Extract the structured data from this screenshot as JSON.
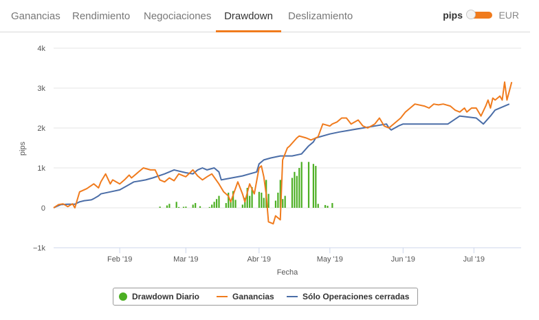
{
  "tabs": [
    {
      "label": "Ganancias",
      "active": false
    },
    {
      "label": "Rendimiento",
      "active": false
    },
    {
      "label": "Negociaciones",
      "active": false
    },
    {
      "label": "Drawdown",
      "active": true
    },
    {
      "label": "Deslizamiento",
      "active": false
    }
  ],
  "unit_toggle": {
    "left_label": "pips",
    "right_label": "EUR",
    "selected": "pips"
  },
  "colors": {
    "accent": "#f07b1d",
    "ganancias": "#f07b1d",
    "cerradas": "#4a6da7",
    "drawdown": "#4caf23"
  },
  "chart_data": {
    "type": "line",
    "xlabel": "Fecha",
    "ylabel": "pips",
    "ylim": [
      -1000,
      4000
    ],
    "y_ticks": [
      -1000,
      0,
      1000,
      2000,
      3000,
      4000
    ],
    "y_tick_labels": [
      "−1k",
      "0",
      "1k",
      "2k",
      "3k",
      "4k"
    ],
    "xlim": [
      "2019-01-04",
      "2019-07-21"
    ],
    "x_ticks": [
      "2019-02-01",
      "2019-03-01",
      "2019-04-01",
      "2019-05-01",
      "2019-06-01",
      "2019-07-01"
    ],
    "x_tick_labels": [
      "Feb '19",
      "Mar '19",
      "Abr '19",
      "May '19",
      "Jun '19",
      "Jul '19"
    ],
    "grid": true,
    "legend_position": "bottom",
    "series": [
      {
        "name": "Drawdown Diario",
        "type": "bar",
        "color": "#4caf23",
        "x": [
          "2019-02-18",
          "2019-02-21",
          "2019-02-22",
          "2019-02-25",
          "2019-02-26",
          "2019-02-28",
          "2019-03-01",
          "2019-03-04",
          "2019-03-05",
          "2019-03-07",
          "2019-03-11",
          "2019-03-12",
          "2019-03-13",
          "2019-03-14",
          "2019-03-15",
          "2019-03-18",
          "2019-03-19",
          "2019-03-20",
          "2019-03-21",
          "2019-03-22",
          "2019-03-25",
          "2019-03-26",
          "2019-03-27",
          "2019-03-28",
          "2019-03-29",
          "2019-04-01",
          "2019-04-02",
          "2019-04-03",
          "2019-04-04",
          "2019-04-05",
          "2019-04-08",
          "2019-04-09",
          "2019-04-10",
          "2019-04-11",
          "2019-04-12",
          "2019-04-15",
          "2019-04-16",
          "2019-04-17",
          "2019-04-18",
          "2019-04-19",
          "2019-04-22",
          "2019-04-24",
          "2019-04-25",
          "2019-04-26",
          "2019-04-29",
          "2019-04-30",
          "2019-05-02"
        ],
        "values": [
          30,
          60,
          100,
          150,
          20,
          25,
          30,
          80,
          120,
          40,
          20,
          80,
          150,
          220,
          300,
          120,
          380,
          170,
          420,
          200,
          80,
          250,
          500,
          300,
          520,
          400,
          380,
          250,
          700,
          350,
          180,
          380,
          700,
          220,
          300,
          750,
          900,
          800,
          1000,
          1150,
          1150,
          1100,
          1050,
          100,
          70,
          50,
          120
        ]
      },
      {
        "name": "Ganancias",
        "type": "line",
        "color": "#f07b1d",
        "x": [
          "2019-01-04",
          "2019-01-06",
          "2019-01-08",
          "2019-01-10",
          "2019-01-12",
          "2019-01-13",
          "2019-01-15",
          "2019-01-18",
          "2019-01-21",
          "2019-01-23",
          "2019-01-24",
          "2019-01-26",
          "2019-01-28",
          "2019-01-29",
          "2019-02-01",
          "2019-02-03",
          "2019-02-05",
          "2019-02-06",
          "2019-02-08",
          "2019-02-09",
          "2019-02-11",
          "2019-02-14",
          "2019-02-16",
          "2019-02-18",
          "2019-02-20",
          "2019-02-22",
          "2019-02-24",
          "2019-02-26",
          "2019-02-28",
          "2019-03-01",
          "2019-03-04",
          "2019-03-06",
          "2019-03-08",
          "2019-03-10",
          "2019-03-12",
          "2019-03-15",
          "2019-03-17",
          "2019-03-19",
          "2019-03-20",
          "2019-03-23",
          "2019-03-25",
          "2019-03-26",
          "2019-03-28",
          "2019-03-30",
          "2019-04-01",
          "2019-04-02",
          "2019-04-03",
          "2019-04-04",
          "2019-04-05",
          "2019-04-07",
          "2019-04-08",
          "2019-04-10",
          "2019-04-11",
          "2019-04-13",
          "2019-04-14",
          "2019-04-17",
          "2019-04-18",
          "2019-04-21",
          "2019-04-23",
          "2019-04-25",
          "2019-04-26",
          "2019-04-28",
          "2019-05-01",
          "2019-05-02",
          "2019-05-04",
          "2019-05-06",
          "2019-05-08",
          "2019-05-10",
          "2019-05-13",
          "2019-05-15",
          "2019-05-17",
          "2019-05-20",
          "2019-05-22",
          "2019-05-24",
          "2019-05-26",
          "2019-05-28",
          "2019-05-31",
          "2019-06-02",
          "2019-06-04",
          "2019-06-06",
          "2019-06-10",
          "2019-06-12",
          "2019-06-14",
          "2019-06-16",
          "2019-06-18",
          "2019-06-21",
          "2019-06-23",
          "2019-06-25",
          "2019-06-27",
          "2019-06-28",
          "2019-06-30",
          "2019-07-02",
          "2019-07-04",
          "2019-07-06",
          "2019-07-07",
          "2019-07-08",
          "2019-07-09",
          "2019-07-10",
          "2019-07-11",
          "2019-07-12",
          "2019-07-13",
          "2019-07-14",
          "2019-07-15",
          "2019-07-17"
        ],
        "values": [
          0,
          80,
          100,
          30,
          100,
          0,
          400,
          480,
          600,
          500,
          650,
          850,
          600,
          700,
          600,
          700,
          820,
          750,
          850,
          900,
          1000,
          950,
          950,
          700,
          650,
          750,
          680,
          850,
          800,
          780,
          950,
          800,
          700,
          780,
          850,
          600,
          400,
          300,
          150,
          650,
          350,
          150,
          600,
          350,
          1000,
          1050,
          780,
          350,
          -350,
          -400,
          -200,
          -300,
          1200,
          1500,
          1550,
          1750,
          1800,
          1750,
          1700,
          1750,
          1780,
          2100,
          2050,
          2100,
          2150,
          2250,
          2250,
          2100,
          2200,
          2050,
          2000,
          2100,
          2250,
          2050,
          2000,
          2100,
          2250,
          2400,
          2500,
          2600,
          2550,
          2500,
          2600,
          2580,
          2600,
          2550,
          2450,
          2400,
          2500,
          2400,
          2500,
          2500,
          2300,
          2550,
          2700,
          2500,
          2750,
          2700,
          2750,
          2800,
          2700,
          3150,
          2700,
          3150
        ]
      },
      {
        "name": "Sólo Operaciones cerradas",
        "type": "line",
        "color": "#4a6da7",
        "x": [
          "2019-01-04",
          "2019-01-05",
          "2019-01-07",
          "2019-01-10",
          "2019-01-13",
          "2019-01-14",
          "2019-01-15",
          "2019-01-17",
          "2019-01-20",
          "2019-01-21",
          "2019-01-23",
          "2019-01-24",
          "2019-01-28",
          "2019-02-01",
          "2019-02-04",
          "2019-02-07",
          "2019-02-10",
          "2019-02-12",
          "2019-02-15",
          "2019-02-20",
          "2019-02-24",
          "2019-03-01",
          "2019-03-04",
          "2019-03-06",
          "2019-03-08",
          "2019-03-10",
          "2019-03-13",
          "2019-03-15",
          "2019-03-16",
          "2019-03-25",
          "2019-03-31",
          "2019-04-01",
          "2019-04-03",
          "2019-04-06",
          "2019-04-10",
          "2019-04-15",
          "2019-04-19",
          "2019-04-22",
          "2019-04-24",
          "2019-04-25",
          "2019-05-01",
          "2019-05-05",
          "2019-05-10",
          "2019-05-15",
          "2019-05-25",
          "2019-05-26",
          "2019-05-27",
          "2019-05-30",
          "2019-06-01",
          "2019-06-03",
          "2019-06-10",
          "2019-06-20",
          "2019-06-25",
          "2019-07-02",
          "2019-07-05",
          "2019-07-08",
          "2019-07-10",
          "2019-07-16"
        ],
        "values": [
          0,
          30,
          80,
          90,
          90,
          120,
          150,
          180,
          200,
          230,
          300,
          350,
          400,
          450,
          550,
          650,
          680,
          700,
          750,
          850,
          950,
          880,
          850,
          950,
          1000,
          950,
          1000,
          900,
          700,
          800,
          900,
          1100,
          1200,
          1250,
          1300,
          1300,
          1350,
          1550,
          1650,
          1750,
          1850,
          1900,
          1950,
          2000,
          2100,
          2000,
          1950,
          2050,
          2100,
          2100,
          2100,
          2100,
          2300,
          2250,
          2100,
          2300,
          2450,
          2600
        ]
      }
    ]
  }
}
